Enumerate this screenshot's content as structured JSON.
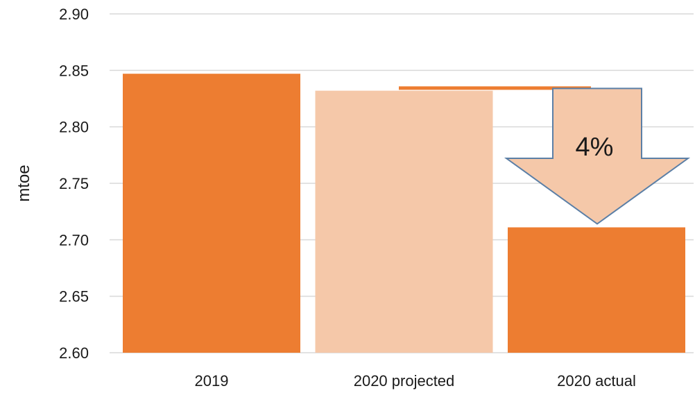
{
  "chart_data": {
    "type": "bar",
    "title": "",
    "xlabel": "",
    "ylabel": "mtoe",
    "ylim": [
      2.6,
      2.9
    ],
    "yticks": [
      2.6,
      2.65,
      2.7,
      2.75,
      2.8,
      2.85,
      2.9
    ],
    "ytick_labels": [
      "2.60",
      "2.65",
      "2.70",
      "2.75",
      "2.80",
      "2.85",
      "2.90"
    ],
    "categories": [
      "2019",
      "2020 projected",
      "2020 actual"
    ],
    "values": [
      2.847,
      2.832,
      2.711
    ],
    "bar_colors": [
      "#ED7D31",
      "#F5C8A9",
      "#ED7D31"
    ],
    "grid": true,
    "reference_line": {
      "value": 2.834,
      "color": "#ED7D31"
    },
    "annotation": {
      "text": "4%",
      "shape": "down-arrow",
      "from_value": 2.834,
      "to_value": 2.711,
      "fill": "#F5C8A9",
      "stroke": "#5B7FA6"
    }
  }
}
